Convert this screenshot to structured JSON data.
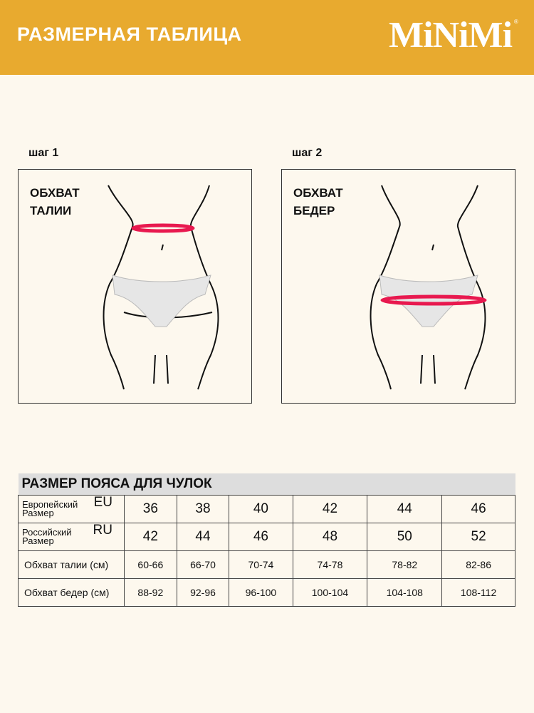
{
  "header": {
    "title": "РАЗМЕРНАЯ ТАБЛИЦА",
    "logo": "MiNiMi",
    "reg": "®",
    "accent": "#e8aa2f"
  },
  "steps": [
    {
      "step": "шаг 1",
      "label": "ОБХВАТ\nТАЛИИ"
    },
    {
      "step": "шаг 2",
      "label": "ОБХВАТ\nБЕДЕР"
    }
  ],
  "table": {
    "title": "РАЗМЕР ПОЯСА ДЛЯ ЧУЛОК",
    "rows": [
      {
        "label": "Европейский Размер",
        "code": "EU",
        "values": [
          "36",
          "38",
          "40",
          "42",
          "44",
          "46"
        ]
      },
      {
        "label": "Российский Размер",
        "code": "RU",
        "values": [
          "42",
          "44",
          "46",
          "48",
          "50",
          "52"
        ]
      },
      {
        "label": "Обхват талии (см)",
        "code": "",
        "values": [
          "60-66",
          "66-70",
          "70-74",
          "74-78",
          "78-82",
          "82-86"
        ]
      },
      {
        "label": "Обхват бедер (см)",
        "code": "",
        "values": [
          "88-92",
          "92-96",
          "96-100",
          "100-104",
          "104-108",
          "108-112"
        ]
      }
    ]
  }
}
